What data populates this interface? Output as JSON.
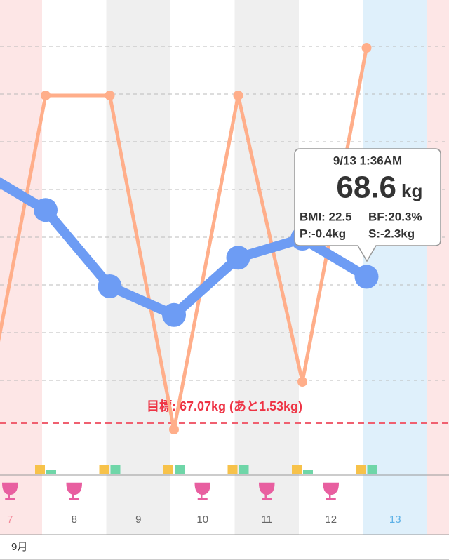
{
  "chart_data": {
    "type": "line",
    "categories": [
      "7",
      "8",
      "9",
      "10",
      "11",
      "12",
      "13"
    ],
    "series": [
      {
        "color": "#ffae8a",
        "axis": "y2",
        "values": [
          18.7,
          20.1,
          20.1,
          18.7,
          20.1,
          18.9,
          20.3
        ]
      },
      {
        "color": "#6d9cf4",
        "values": [
          69.7,
          69.3,
          68.5,
          68.2,
          68.8,
          69.0,
          68.6
        ]
      }
    ],
    "ylim": [
      66.5,
      71.5
    ],
    "y2lim": [
      18.5,
      20.5
    ],
    "goal": {
      "value": 67.07,
      "label": "目標: 67.07kg (あと1.53kg)",
      "color": "#f06070"
    },
    "month": "9月"
  },
  "tooltip": {
    "date": "9/13 1:36AM",
    "weight": "68.6",
    "unit": "kg",
    "bmi": "BMI: 22.5",
    "bf": "BF:20.3%",
    "p": "P:-0.4kg",
    "s": "S:-2.3kg"
  }
}
